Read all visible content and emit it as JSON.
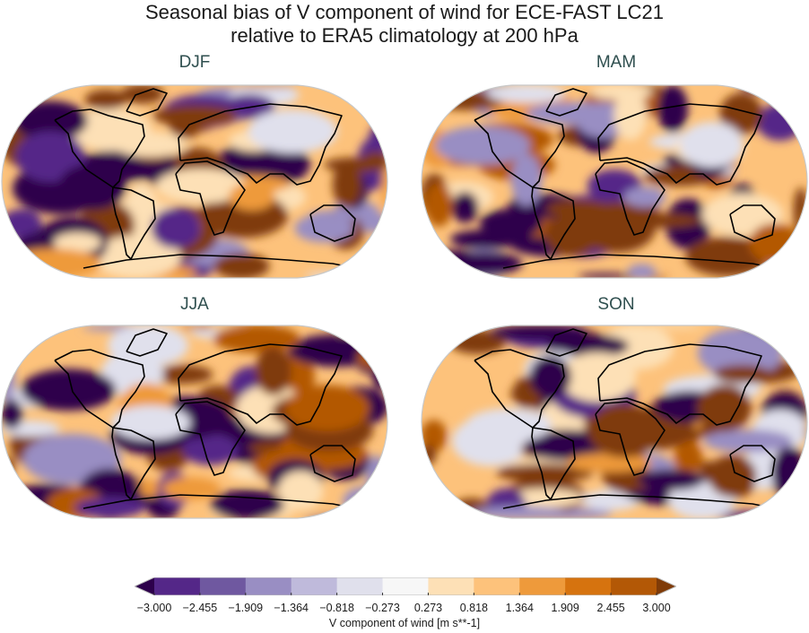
{
  "title": {
    "line1": "Seasonal bias of V component of wind for ECE-FAST LC21",
    "line2": "relative to ERA5 climatology at 200 hPa"
  },
  "panels": [
    {
      "label": "DJF"
    },
    {
      "label": "MAM"
    },
    {
      "label": "JJA"
    },
    {
      "label": "SON"
    }
  ],
  "colorbar": {
    "label": "V component of wind [m s**-1]",
    "ticks": [
      "−3.000",
      "−2.455",
      "−1.909",
      "−1.364",
      "−0.818",
      "−0.273",
      "0.273",
      "0.818",
      "1.364",
      "1.909",
      "2.455",
      "3.000"
    ],
    "colors": [
      "#542788",
      "#6f58a0",
      "#998ec3",
      "#bfbadb",
      "#e0e0ec",
      "#f7f7f7",
      "#fde0b6",
      "#fdc27b",
      "#ee9a3b",
      "#d6730f",
      "#b35806"
    ],
    "extend_low": "#2d004b",
    "extend_high": "#7f3b08",
    "colormap": "PuOr_r",
    "projection": "Robinson"
  }
}
